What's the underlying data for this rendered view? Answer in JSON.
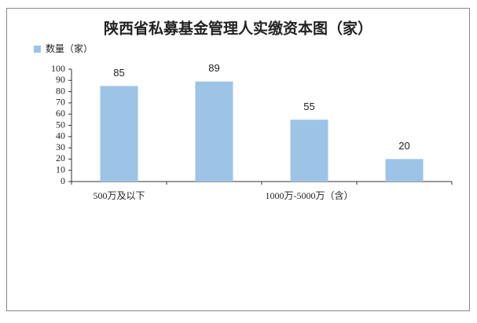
{
  "chart_data": {
    "type": "bar",
    "title": "陕西省私募基金管理人实缴资本图（家）",
    "categories": [
      "500万及以下",
      null,
      "1000万-5000万（含）",
      null
    ],
    "series": [
      {
        "name": "数量（家）",
        "color": "#9dc3e6",
        "values": [
          85,
          89,
          55,
          20
        ]
      }
    ],
    "ylim": [
      0,
      100
    ],
    "yticks": [
      0,
      10,
      20,
      30,
      40,
      50,
      60,
      70,
      80,
      90,
      100
    ],
    "legend": "top-left"
  }
}
